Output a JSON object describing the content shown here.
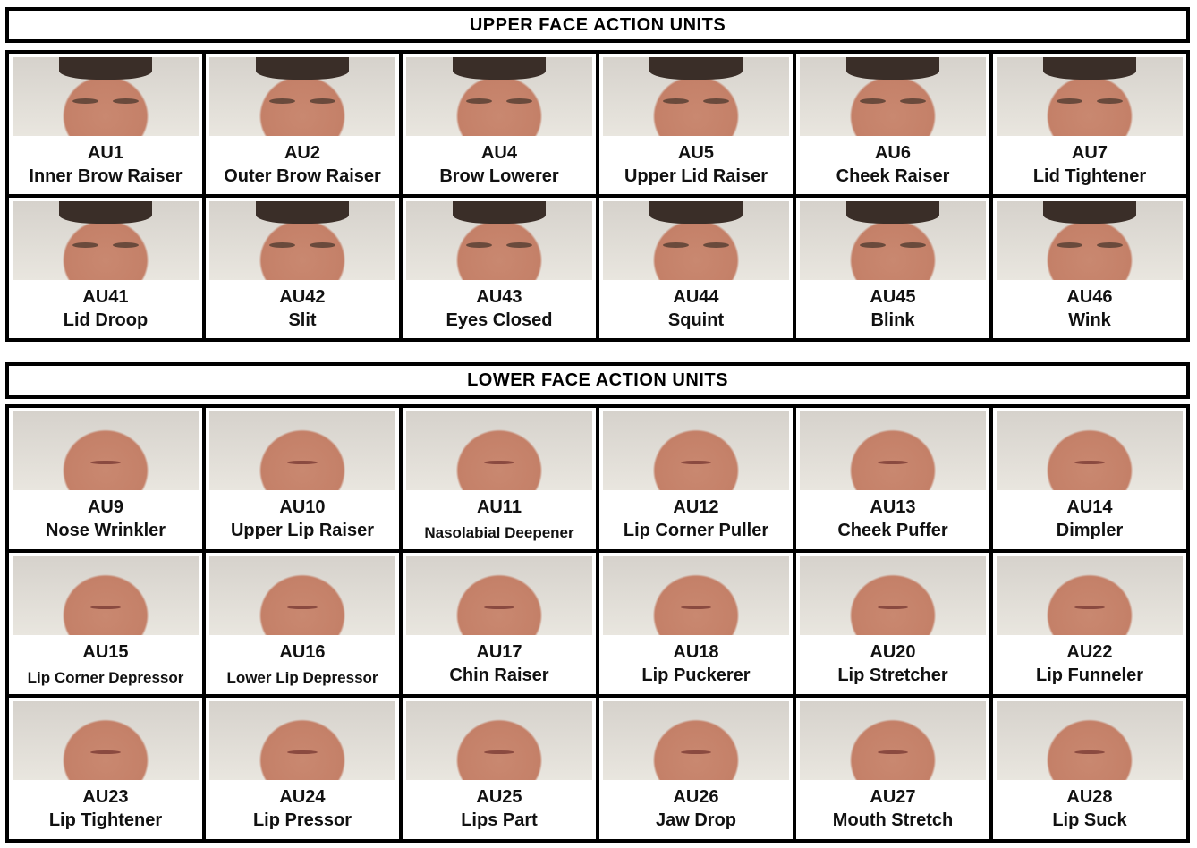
{
  "upper": {
    "title": "UPPER FACE ACTION UNITS",
    "units": [
      {
        "code": "AU1",
        "name": "Inner Brow Raiser"
      },
      {
        "code": "AU2",
        "name": "Outer Brow Raiser"
      },
      {
        "code": "AU4",
        "name": "Brow Lowerer"
      },
      {
        "code": "AU5",
        "name": "Upper Lid Raiser"
      },
      {
        "code": "AU6",
        "name": "Cheek Raiser"
      },
      {
        "code": "AU7",
        "name": "Lid Tightener"
      },
      {
        "code": "AU41",
        "name": "Lid Droop"
      },
      {
        "code": "AU42",
        "name": "Slit"
      },
      {
        "code": "AU43",
        "name": "Eyes Closed"
      },
      {
        "code": "AU44",
        "name": "Squint"
      },
      {
        "code": "AU45",
        "name": "Blink"
      },
      {
        "code": "AU46",
        "name": "Wink"
      }
    ]
  },
  "lower": {
    "title": "LOWER FACE ACTION UNITS",
    "units": [
      {
        "code": "AU9",
        "name": "Nose Wrinkler"
      },
      {
        "code": "AU10",
        "name": "Upper Lip Raiser"
      },
      {
        "code": "AU11",
        "name": "Nasolabial Deepener"
      },
      {
        "code": "AU12",
        "name": "Lip Corner Puller"
      },
      {
        "code": "AU13",
        "name": "Cheek Puffer"
      },
      {
        "code": "AU14",
        "name": "Dimpler"
      },
      {
        "code": "AU15",
        "name": "Lip Corner Depressor"
      },
      {
        "code": "AU16",
        "name": "Lower Lip Depressor"
      },
      {
        "code": "AU17",
        "name": "Chin Raiser"
      },
      {
        "code": "AU18",
        "name": "Lip Puckerer"
      },
      {
        "code": "AU20",
        "name": "Lip Stretcher"
      },
      {
        "code": "AU22",
        "name": "Lip Funneler"
      },
      {
        "code": "AU23",
        "name": "Lip Tightener"
      },
      {
        "code": "AU24",
        "name": "Lip Pressor"
      },
      {
        "code": "AU25",
        "name": "Lips Part"
      },
      {
        "code": "AU26",
        "name": "Jaw Drop"
      },
      {
        "code": "AU27",
        "name": "Mouth Stretch"
      },
      {
        "code": "AU28",
        "name": "Lip Suck"
      }
    ]
  }
}
